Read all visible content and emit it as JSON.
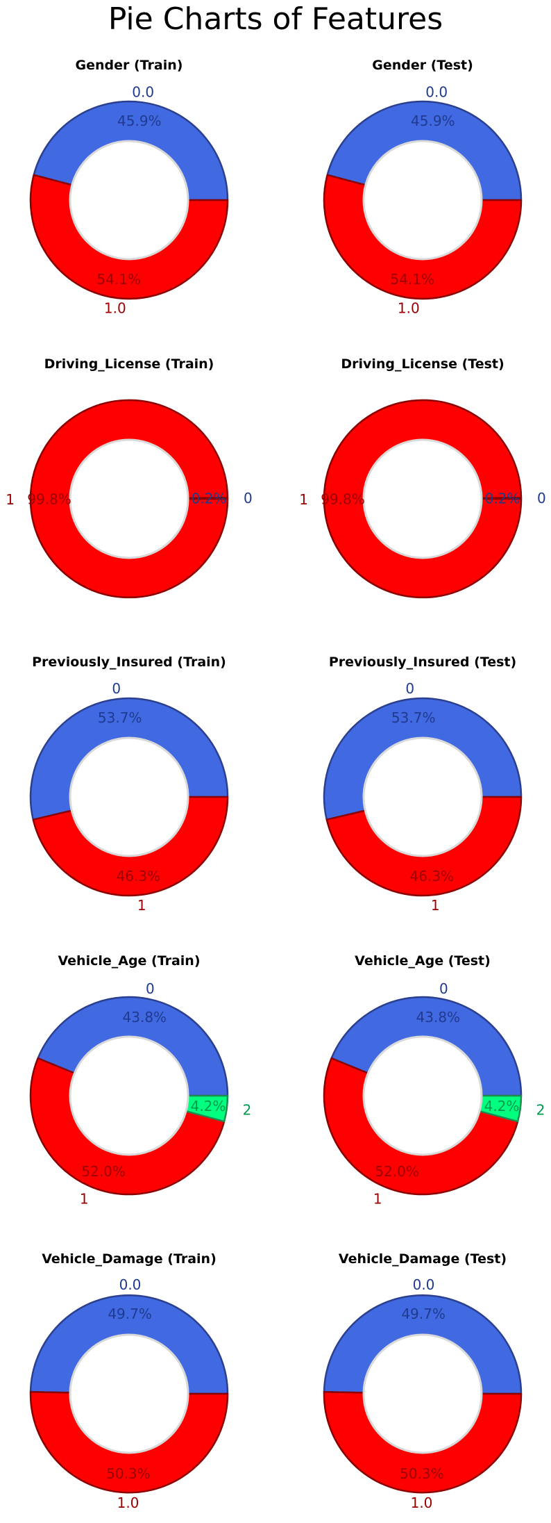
{
  "figure": {
    "title": "Pie Charts of Features"
  },
  "colors": {
    "slice_blue": "#4169E1",
    "slice_red": "#FF0000",
    "slice_green": "#00FF7F",
    "label_blue": "#1F3A8F",
    "label_red": "#9B0000",
    "label_green": "#00994D",
    "edge_blue": "#2B3F8F",
    "edge_red": "#8B0000",
    "edge_green": "#1E8A50",
    "hole_edge": "#D9D9D9"
  },
  "chart_data": [
    {
      "type": "pie",
      "title": "Gender (Train)",
      "labels": [
        "0.0",
        "1.0"
      ],
      "values": [
        45.9,
        54.1
      ],
      "pct_labels": [
        "45.9%",
        "54.1%"
      ],
      "colors": [
        "#4169E1",
        "#FF0000"
      ],
      "donut": true
    },
    {
      "type": "pie",
      "title": "Gender (Test)",
      "labels": [
        "0.0",
        "1.0"
      ],
      "values": [
        45.9,
        54.1
      ],
      "pct_labels": [
        "45.9%",
        "54.1%"
      ],
      "colors": [
        "#4169E1",
        "#FF0000"
      ],
      "donut": true
    },
    {
      "type": "pie",
      "title": "Driving_License (Train)",
      "labels": [
        "0",
        "1"
      ],
      "values": [
        0.2,
        99.8
      ],
      "pct_labels": [
        "0.2%",
        "99.8%"
      ],
      "colors": [
        "#4169E1",
        "#FF0000"
      ],
      "donut": true
    },
    {
      "type": "pie",
      "title": "Driving_License (Test)",
      "labels": [
        "0",
        "1"
      ],
      "values": [
        0.2,
        99.8
      ],
      "pct_labels": [
        "0.2%",
        "99.8%"
      ],
      "colors": [
        "#4169E1",
        "#FF0000"
      ],
      "donut": true
    },
    {
      "type": "pie",
      "title": "Previously_Insured (Train)",
      "labels": [
        "0",
        "1"
      ],
      "values": [
        53.7,
        46.3
      ],
      "pct_labels": [
        "53.7%",
        "46.3%"
      ],
      "colors": [
        "#4169E1",
        "#FF0000"
      ],
      "donut": true
    },
    {
      "type": "pie",
      "title": "Previously_Insured (Test)",
      "labels": [
        "0",
        "1"
      ],
      "values": [
        53.7,
        46.3
      ],
      "pct_labels": [
        "53.7%",
        "46.3%"
      ],
      "colors": [
        "#4169E1",
        "#FF0000"
      ],
      "donut": true
    },
    {
      "type": "pie",
      "title": "Vehicle_Age (Train)",
      "labels": [
        "0",
        "1",
        "2"
      ],
      "values": [
        43.8,
        52.0,
        4.2
      ],
      "pct_labels": [
        "43.8%",
        "52.0%",
        "4.2%"
      ],
      "colors": [
        "#4169E1",
        "#FF0000",
        "#00FF7F"
      ],
      "donut": true
    },
    {
      "type": "pie",
      "title": "Vehicle_Age (Test)",
      "labels": [
        "0",
        "1",
        "2"
      ],
      "values": [
        43.8,
        52.0,
        4.2
      ],
      "pct_labels": [
        "43.8%",
        "52.0%",
        "4.2%"
      ],
      "colors": [
        "#4169E1",
        "#FF0000",
        "#00FF7F"
      ],
      "donut": true
    },
    {
      "type": "pie",
      "title": "Vehicle_Damage (Train)",
      "labels": [
        "0.0",
        "1.0"
      ],
      "values": [
        49.7,
        50.3
      ],
      "pct_labels": [
        "49.7%",
        "50.3%"
      ],
      "colors": [
        "#4169E1",
        "#FF0000"
      ],
      "donut": true
    },
    {
      "type": "pie",
      "title": "Vehicle_Damage (Test)",
      "labels": [
        "0.0",
        "1.0"
      ],
      "values": [
        49.7,
        50.3
      ],
      "pct_labels": [
        "49.7%",
        "50.3%"
      ],
      "colors": [
        "#4169E1",
        "#FF0000"
      ],
      "donut": true
    }
  ]
}
